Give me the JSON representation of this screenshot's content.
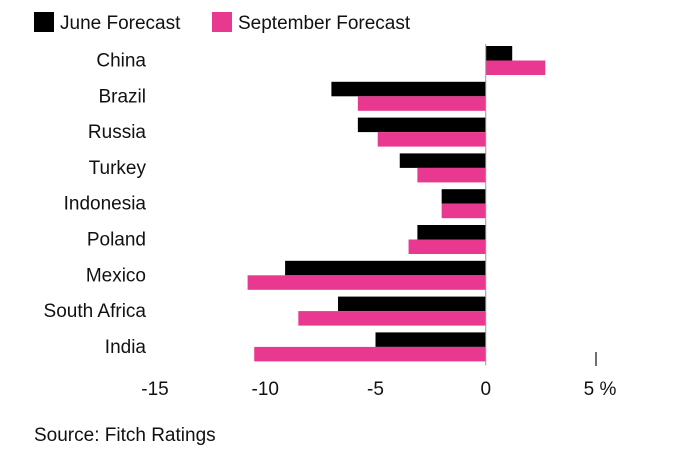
{
  "chart_data": {
    "type": "bar",
    "orientation": "horizontal",
    "categories": [
      "China",
      "Brazil",
      "Russia",
      "Turkey",
      "Indonesia",
      "Poland",
      "Mexico",
      "South Africa",
      "India"
    ],
    "series": [
      {
        "name": "June Forecast",
        "color": "#000000",
        "values": [
          1.2,
          -7.0,
          -5.8,
          -3.9,
          -2.0,
          -3.1,
          -9.1,
          -6.7,
          -5.0
        ]
      },
      {
        "name": "September Forecast",
        "color": "#e8388f",
        "values": [
          2.7,
          -5.8,
          -4.9,
          -3.1,
          -2.0,
          -3.5,
          -10.8,
          -8.5,
          -10.5
        ]
      }
    ],
    "xlim": [
      -15,
      5
    ],
    "xticks": [
      {
        "value": -15,
        "label": "-15"
      },
      {
        "value": -10,
        "label": "-10"
      },
      {
        "value": -5,
        "label": "-5"
      },
      {
        "value": 0,
        "label": "0"
      },
      {
        "value": 5,
        "label": "5 %"
      }
    ],
    "legend_position": "top-left",
    "grid": false
  },
  "source": "Source: Fitch Ratings"
}
